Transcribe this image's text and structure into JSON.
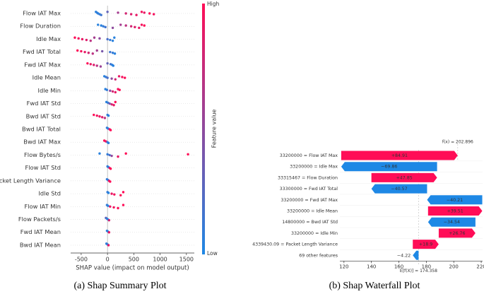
{
  "chart_data": [
    {
      "type": "beeswarm",
      "xlabel": "SHAP value (impact on model output)",
      "colorbar_label": "Feature value",
      "colorbar_high": "High",
      "colorbar_low": "Low",
      "colormap": [
        "#1e88e5",
        "#ff0d57"
      ],
      "caption": "(a) Shap Summary Plot",
      "xlim": [
        -700,
        1650
      ],
      "xticks": [
        -500,
        0,
        500,
        1000,
        1500
      ],
      "features": [
        {
          "name": "Flow IAT Max",
          "shap": [
            -220,
            -200,
            -180,
            -150,
            -120,
            0,
            200,
            350,
            450,
            550,
            650,
            700,
            800,
            880
          ],
          "feature_value": [
            0.05,
            0.1,
            0.05,
            0.1,
            0.15,
            0.3,
            0.6,
            0.8,
            0.85,
            0.9,
            0.95,
            0.9,
            1,
            0.95
          ]
        },
        {
          "name": "Flow Duration",
          "shap": [
            -180,
            -120,
            -80,
            -40,
            100,
            250,
            350,
            450,
            520,
            600,
            650,
            700
          ],
          "feature_value": [
            0.05,
            0.05,
            0.1,
            0.15,
            0.5,
            0.6,
            0.7,
            0.8,
            0.85,
            0.9,
            0.95,
            1
          ]
        },
        {
          "name": "Idle Max",
          "shap": [
            -620,
            -550,
            -480,
            -400,
            -320,
            -250,
            -150,
            0,
            50,
            100,
            130
          ],
          "feature_value": [
            1,
            0.95,
            0.9,
            0.85,
            0.7,
            0.6,
            0.5,
            0.2,
            0.1,
            0.05,
            0.05
          ]
        },
        {
          "name": "Fwd IAT Total",
          "shap": [
            -570,
            -500,
            -430,
            -360,
            -280,
            -200,
            -100,
            50,
            100,
            140
          ],
          "feature_value": [
            1,
            0.95,
            0.9,
            0.8,
            0.7,
            0.6,
            0.4,
            0.15,
            0.1,
            0.05
          ]
        },
        {
          "name": "Fwd IAT Max",
          "shap": [
            -380,
            -320,
            -260,
            -200,
            -130,
            0,
            60,
            90,
            110
          ],
          "feature_value": [
            1,
            0.9,
            0.85,
            0.7,
            0.55,
            0.3,
            0.15,
            0.05,
            0.05
          ]
        },
        {
          "name": "Idle Mean",
          "shap": [
            -60,
            -30,
            0,
            80,
            150,
            220,
            280,
            330
          ],
          "feature_value": [
            0.05,
            0.1,
            0.2,
            0.5,
            0.8,
            0.9,
            0.95,
            1
          ]
        },
        {
          "name": "Idle Min",
          "shap": [
            -40,
            -10,
            50,
            100,
            150,
            200,
            230
          ],
          "feature_value": [
            0.05,
            0.1,
            0.5,
            0.8,
            0.9,
            0.95,
            1
          ]
        },
        {
          "name": "Fwd IAT Std",
          "shap": [
            -20,
            10,
            40,
            80,
            120,
            150
          ],
          "feature_value": [
            0.05,
            0.1,
            0.4,
            0.8,
            0.9,
            1
          ]
        },
        {
          "name": "Bwd IAT Std",
          "shap": [
            -260,
            -200,
            -150,
            -100,
            -50,
            0,
            20
          ],
          "feature_value": [
            1,
            0.95,
            0.9,
            0.85,
            0.7,
            0.1,
            0.05
          ]
        },
        {
          "name": "Bwd IAT Total",
          "shap": [
            -10,
            10,
            40,
            60
          ],
          "feature_value": [
            0.1,
            0.05,
            0.9,
            1
          ]
        },
        {
          "name": "Bwd IAT Max",
          "shap": [
            -60,
            -30,
            0,
            20
          ],
          "feature_value": [
            1,
            0.9,
            0.1,
            0.05
          ]
        },
        {
          "name": "Flow Bytes/s",
          "shap": [
            -150,
            0,
            40,
            80,
            200,
            350,
            1530
          ],
          "feature_value": [
            0.05,
            0.1,
            0.2,
            0.5,
            0.9,
            1,
            1
          ]
        },
        {
          "name": "Flow IAT Std",
          "shap": [
            0,
            20,
            40,
            60
          ],
          "feature_value": [
            0.1,
            0.05,
            0.9,
            1
          ]
        },
        {
          "name": "Packet Length Variance",
          "shap": [
            -10,
            10,
            30,
            50
          ],
          "feature_value": [
            0.1,
            0.05,
            0.9,
            1
          ]
        },
        {
          "name": "Idle Std",
          "shap": [
            0,
            20,
            80,
            130,
            250,
            300
          ],
          "feature_value": [
            0.1,
            0.05,
            0.9,
            0.95,
            1,
            1
          ]
        },
        {
          "name": "Flow IAT Min",
          "shap": [
            -10,
            10,
            50,
            120,
            200,
            300
          ],
          "feature_value": [
            0.1,
            0.05,
            0.9,
            0.95,
            1,
            1
          ]
        },
        {
          "name": "Flow Packets/s",
          "shap": [
            -30,
            -10,
            10,
            30
          ],
          "feature_value": [
            0.3,
            0.1,
            0.05,
            0.8
          ]
        },
        {
          "name": "Fwd IAT Mean",
          "shap": [
            -10,
            10,
            30
          ],
          "feature_value": [
            0.1,
            0.05,
            0.9
          ]
        },
        {
          "name": "Bwd IAT Mean",
          "shap": [
            -20,
            0,
            20
          ],
          "feature_value": [
            0.1,
            0.05,
            0.9
          ]
        }
      ]
    },
    {
      "type": "waterfall",
      "caption": "(b) Shap Waterfall Plot",
      "categories": [
        "33200000 = Flow IAT Max",
        "33200000 = Idle Max",
        "33315467 = Flow Duration",
        "33300000 = Fwd IAT Total",
        "33200000 = Fwd IAT Max",
        "33200000 = Idle Mean",
        "14800000 = Bwd IAT Std",
        "33200000 = Idle Min",
        "4339430.09 = Packet Length Variance",
        "69 other features"
      ],
      "values": [
        84.91,
        -69.86,
        47.85,
        -40.57,
        -40.21,
        39.51,
        -34.54,
        26.76,
        18.9,
        -4.22
      ],
      "value_labels": [
        "+84.91",
        "−69.86",
        "+47.85",
        "−40.57",
        "−40.21",
        "+39.51",
        "−34.54",
        "+26.76",
        "+18.9",
        "−4.22"
      ],
      "base": {
        "value": 174.358,
        "label": "E[f(X)] = 174.358"
      },
      "output": {
        "value": 202.896,
        "label": "f(x) = 202.896"
      },
      "colors": {
        "positive": "#ff0d57",
        "negative": "#1e88e5"
      },
      "xlim": [
        117,
        221
      ],
      "xticks": [
        120,
        140,
        160,
        180,
        200,
        220
      ]
    }
  ]
}
